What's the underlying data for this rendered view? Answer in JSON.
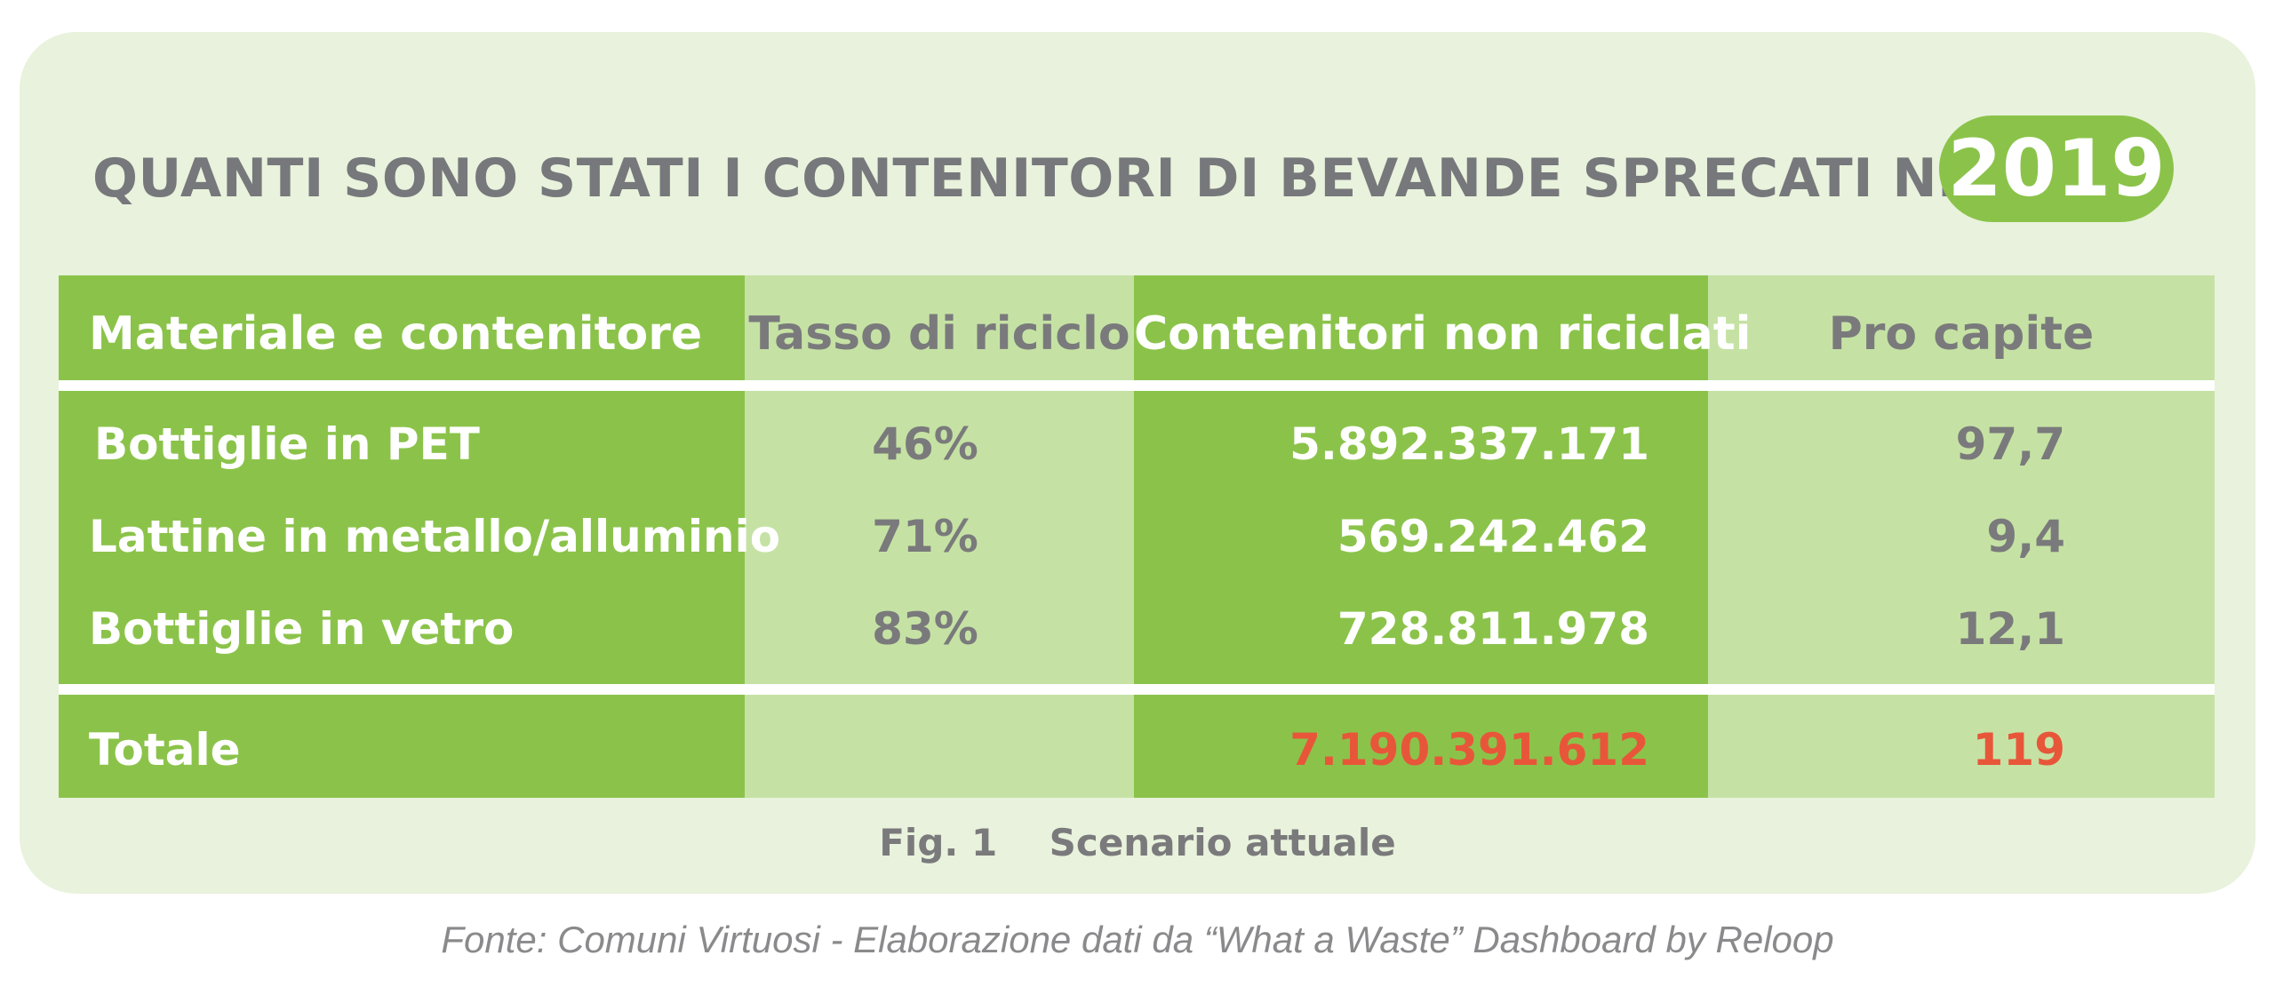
{
  "title_prefix": "QUANTI SONO STATI I CONTENITORI DI BEVANDE SPRECATI NEL",
  "year": "2019",
  "colors": {
    "green": "#8bc34a",
    "light_green": "#c5e2a4",
    "panel": "#e9f2dc",
    "highlight": "#e8563a",
    "gray_text": "#7a7a7c"
  },
  "chart_data": {
    "type": "table",
    "columns": [
      "Materiale e contenitore",
      "Tasso di riciclo",
      "Contenitori non riciclati",
      "Pro capite"
    ],
    "rows": [
      [
        "Bottiglie in PET",
        "46%",
        "5.892.337.171",
        "97,7"
      ],
      [
        "Lattine in metallo/alluminio",
        "71%",
        "569.242.462",
        "9,4"
      ],
      [
        "Bottiglie in vetro",
        "83%",
        "728.811.978",
        "12,1"
      ]
    ],
    "total": {
      "label": "Totale",
      "non_recycled": "7.190.391.612",
      "per_capita": "119"
    }
  },
  "caption": "Fig. 1    Scenario attuale",
  "source": "Fonte: Comuni Virtuosi - Elaborazione dati da “What a Waste” Dashboard by Reloop"
}
